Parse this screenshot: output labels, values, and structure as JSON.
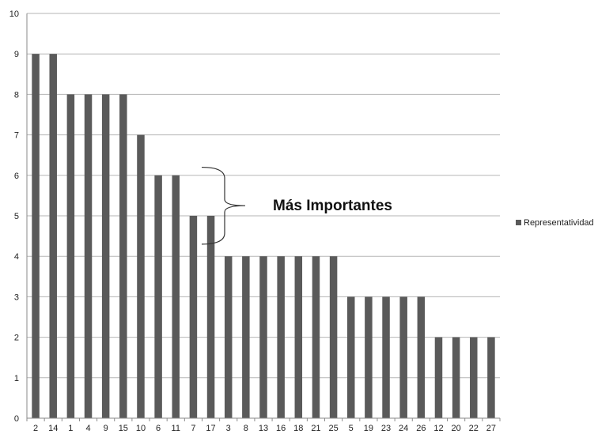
{
  "chart_data": {
    "type": "bar",
    "categories": [
      "2",
      "14",
      "1",
      "4",
      "9",
      "15",
      "10",
      "6",
      "11",
      "7",
      "17",
      "3",
      "8",
      "13",
      "16",
      "18",
      "21",
      "25",
      "5",
      "19",
      "23",
      "24",
      "26",
      "12",
      "20",
      "22",
      "27"
    ],
    "series": [
      {
        "name": "Representatividad",
        "values": [
          9,
          9,
          8,
          8,
          8,
          8,
          7,
          6,
          6,
          5,
          5,
          4,
          4,
          4,
          4,
          4,
          4,
          4,
          3,
          3,
          3,
          3,
          3,
          2,
          2,
          2,
          2
        ]
      }
    ],
    "ylim": [
      0,
      10
    ],
    "yticks": [
      0,
      1,
      2,
      3,
      4,
      5,
      6,
      7,
      8,
      9,
      10
    ],
    "grid": true,
    "legend_position": "right",
    "bar_color": "#5a5a5a",
    "annotation": {
      "text": "Más Importantes",
      "bracket_range": [
        4.3,
        6.2
      ]
    }
  }
}
